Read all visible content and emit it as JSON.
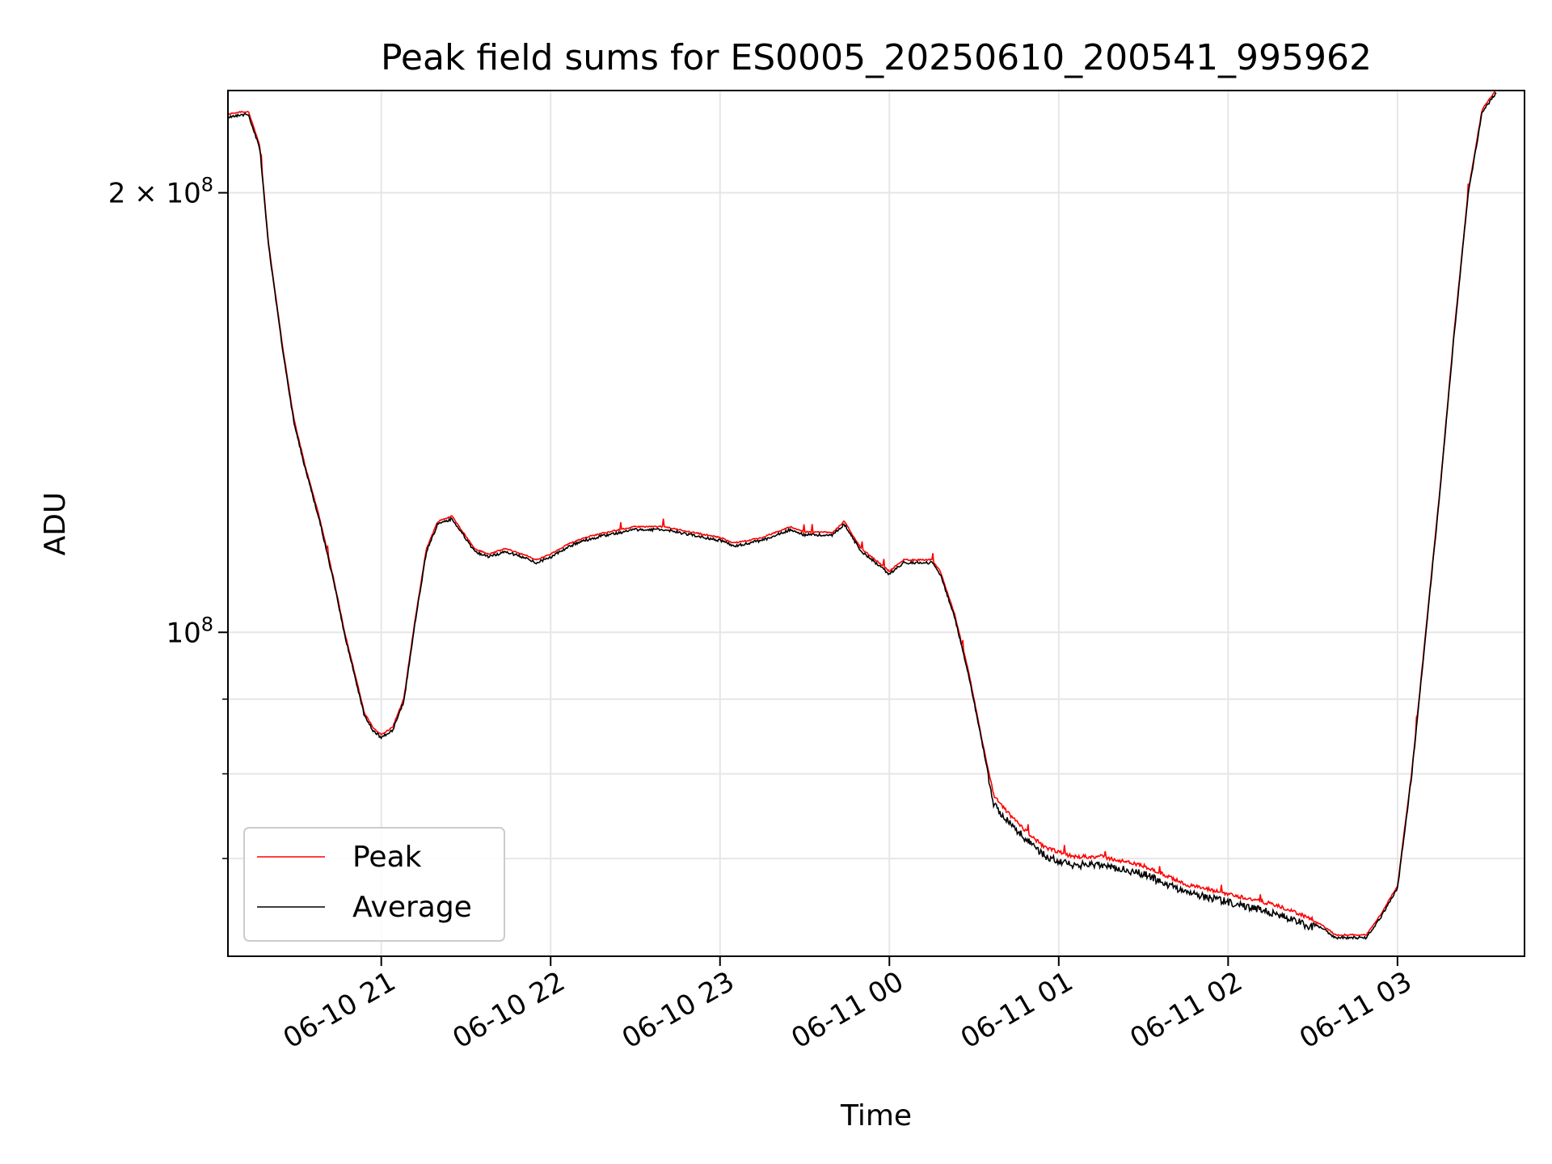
{
  "chart_data": {
    "type": "line",
    "title": "Peak field sums for ES0005_20250610_200541_995962",
    "xlabel": "Time",
    "ylabel": "ADU",
    "y_scale": "log",
    "ylim": [
      60000000,
      235000000
    ],
    "xlim": [
      "2025-06-10 20:05:41",
      "2025-06-11 03:45:00"
    ],
    "grid": true,
    "legend_position": "lower left",
    "y_ticks": [
      {
        "value": 200000000,
        "mantissa": "2",
        "exponent": "8"
      },
      {
        "value": 100000000,
        "mantissa": "",
        "exponent": "8"
      }
    ],
    "y_minor_ticks": [
      90000000,
      80000000,
      70000000
    ],
    "x_ticks": [
      {
        "value": "2025-06-10 21:00",
        "label": "06-10 21"
      },
      {
        "value": "2025-06-10 22:00",
        "label": "06-10 22"
      },
      {
        "value": "2025-06-10 23:00",
        "label": "06-10 23"
      },
      {
        "value": "2025-06-11 00:00",
        "label": "06-11 00"
      },
      {
        "value": "2025-06-11 01:00",
        "label": "06-11 01"
      },
      {
        "value": "2025-06-11 02:00",
        "label": "06-11 02"
      },
      {
        "value": "2025-06-11 03:00",
        "label": "06-11 03"
      }
    ],
    "series": [
      {
        "name": "Peak",
        "color": "#ff0000"
      },
      {
        "name": "Average",
        "color": "#000000"
      }
    ],
    "x": [
      "2025-06-10 20:05",
      "2025-06-10 20:10",
      "2025-06-10 20:13",
      "2025-06-10 20:17",
      "2025-06-10 20:20",
      "2025-06-10 20:25",
      "2025-06-10 20:29",
      "2025-06-10 20:33",
      "2025-06-10 20:38",
      "2025-06-10 20:43",
      "2025-06-10 20:47",
      "2025-06-10 20:51",
      "2025-06-10 20:54",
      "2025-06-10 20:57",
      "2025-06-10 21:00",
      "2025-06-10 21:04",
      "2025-06-10 21:08",
      "2025-06-10 21:12",
      "2025-06-10 21:16",
      "2025-06-10 21:20",
      "2025-06-10 21:25",
      "2025-06-10 21:29",
      "2025-06-10 21:33",
      "2025-06-10 21:38",
      "2025-06-10 21:44",
      "2025-06-10 21:50",
      "2025-06-10 21:55",
      "2025-06-10 22:00",
      "2025-06-10 22:07",
      "2025-06-10 22:12",
      "2025-06-10 22:20",
      "2025-06-10 22:30",
      "2025-06-10 22:40",
      "2025-06-10 22:50",
      "2025-06-10 23:00",
      "2025-06-10 23:05",
      "2025-06-10 23:15",
      "2025-06-10 23:20",
      "2025-06-10 23:25",
      "2025-06-10 23:30",
      "2025-06-10 23:35",
      "2025-06-10 23:40",
      "2025-06-10 23:44",
      "2025-06-10 23:50",
      "2025-06-10 23:55",
      "2025-06-11 00:00",
      "2025-06-11 00:05",
      "2025-06-11 00:10",
      "2025-06-11 00:15",
      "2025-06-11 00:18",
      "2025-06-11 00:23",
      "2025-06-11 00:28",
      "2025-06-11 00:33",
      "2025-06-11 00:37",
      "2025-06-11 00:42",
      "2025-06-11 00:48",
      "2025-06-11 00:55",
      "2025-06-11 01:05",
      "2025-06-11 01:15",
      "2025-06-11 01:30",
      "2025-06-11 01:45",
      "2025-06-11 02:00",
      "2025-06-11 02:15",
      "2025-06-11 02:25",
      "2025-06-11 02:33",
      "2025-06-11 02:38",
      "2025-06-11 02:44",
      "2025-06-11 02:49",
      "2025-06-11 02:54",
      "2025-06-11 03:00",
      "2025-06-11 03:05",
      "2025-06-11 03:10",
      "2025-06-11 03:15",
      "2025-06-11 03:20",
      "2025-06-11 03:25",
      "2025-06-11 03:30",
      "2025-06-11 03:35"
    ],
    "values": [
      226000000,
      227000000,
      227000000,
      215000000,
      185000000,
      157000000,
      140000000,
      130000000,
      120000000,
      109000000,
      100000000,
      93000000,
      88000000,
      86000000,
      85000000,
      86000000,
      90000000,
      102000000,
      114000000,
      119000000,
      120000000,
      117000000,
      114000000,
      113000000,
      114000000,
      113000000,
      112000000,
      113000000,
      115000000,
      116000000,
      117000000,
      118000000,
      118000000,
      117000000,
      116000000,
      115000000,
      116000000,
      117000000,
      118000000,
      117000000,
      117000000,
      117000000,
      119000000,
      114000000,
      112000000,
      110000000,
      112000000,
      112000000,
      112000000,
      110000000,
      103000000,
      94000000,
      84000000,
      77000000,
      75000000,
      73000000,
      71000000,
      70000000,
      70000000,
      69000000,
      67000000,
      66000000,
      65000000,
      64000000,
      63000000,
      62000000,
      62000000,
      62000000,
      64000000,
      67000000,
      80000000,
      100000000,
      125000000,
      160000000,
      200000000,
      228000000,
      235000000
    ]
  },
  "legend": {
    "peak_label": "Peak",
    "average_label": "Average"
  }
}
